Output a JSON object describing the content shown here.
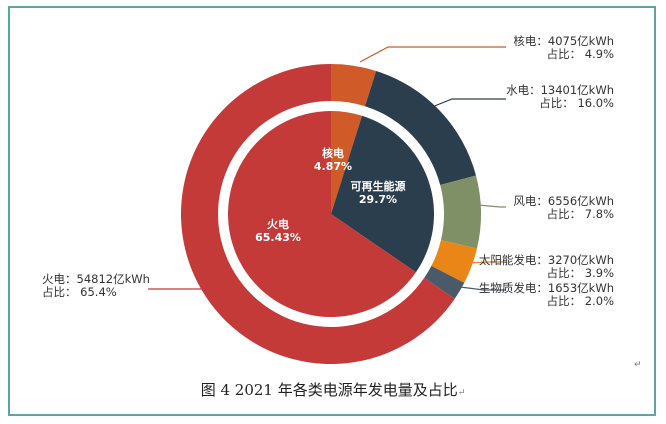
{
  "caption": "图 4 2021 年各类电源年发电量及占比",
  "caption_mark": "↵",
  "para_mark": "↵",
  "chart_data": {
    "type": "pie",
    "variant": "nested-donut",
    "unit": "亿kWh",
    "outer": [
      {
        "id": "nuclear",
        "name": "核电",
        "value": 4075,
        "share": "4.9%",
        "color": "#d05a28"
      },
      {
        "id": "hydro",
        "name": "水电",
        "value": 13401,
        "share": "16.0%",
        "color": "#2a3e4e"
      },
      {
        "id": "wind",
        "name": "风电",
        "value": 6556,
        "share": "7.8%",
        "color": "#7f8f66"
      },
      {
        "id": "solar",
        "name": "太阳能发电",
        "value": 3270,
        "share": "3.9%",
        "color": "#ea8518"
      },
      {
        "id": "biomass",
        "name": "生物质发电",
        "value": 1653,
        "share": "2.0%",
        "color": "#4a5a68"
      },
      {
        "id": "thermal",
        "name": "火电",
        "value": 54812,
        "share": "65.4%",
        "color": "#c43a38"
      }
    ],
    "inner": [
      {
        "id": "nuclear",
        "name": "核电",
        "percent": 4.87,
        "label": "4.87%",
        "color": "#d05a28"
      },
      {
        "id": "renewable",
        "name": "可再生能源",
        "percent": 29.7,
        "label": "29.7%",
        "color": "#2a3e4e"
      },
      {
        "id": "thermal",
        "name": "火电",
        "percent": 65.43,
        "label": "65.43%",
        "color": "#c43a38"
      }
    ],
    "labels": {
      "value_sep": "：",
      "share_prefix": "占比："
    }
  }
}
